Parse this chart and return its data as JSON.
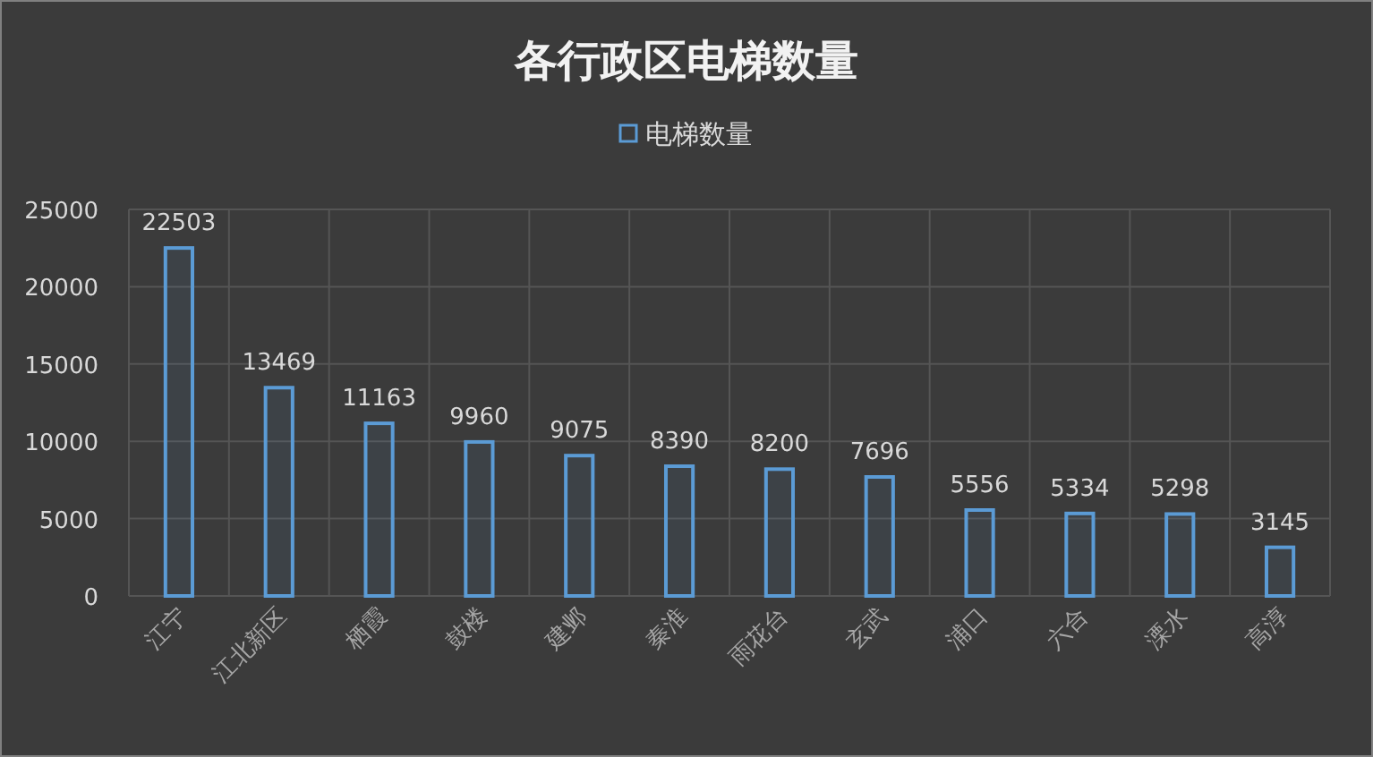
{
  "chart_data": {
    "type": "bar",
    "title": "各行政区电梯数量",
    "categories": [
      "江宁",
      "江北新区",
      "栖霞",
      "鼓楼",
      "建邺",
      "秦淮",
      "雨花台",
      "玄武",
      "浦口",
      "六合",
      "溧水",
      "高淳"
    ],
    "series": [
      {
        "name": "电梯数量",
        "color": "#5b9bd5",
        "values": [
          22503,
          13469,
          11163,
          9960,
          9075,
          8390,
          8200,
          7696,
          5556,
          5334,
          5298,
          3145
        ]
      }
    ],
    "ylim": [
      0,
      25000
    ],
    "yticks": [
      0,
      5000,
      10000,
      15000,
      20000,
      25000
    ],
    "grid": true,
    "legend": "top",
    "data_labels": true
  }
}
